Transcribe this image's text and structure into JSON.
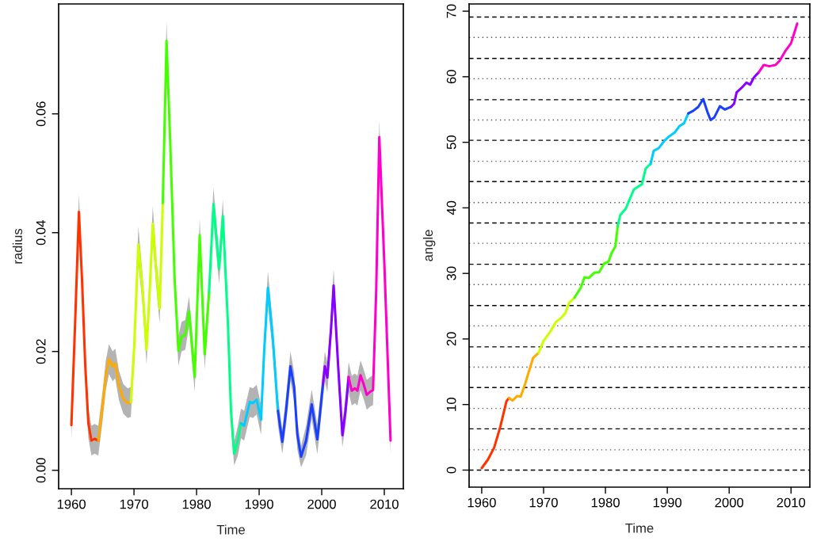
{
  "chart_data": [
    {
      "type": "line",
      "xlabel": "Time",
      "ylabel": "radius",
      "xlim": [
        1957.96,
        2013.04
      ],
      "ylim": [
        -0.0031,
        0.0785
      ],
      "xticks": [
        1960,
        1970,
        1980,
        1990,
        2000,
        2010
      ],
      "yticks": [
        {
          "value": 0,
          "label": "0.00"
        },
        {
          "value": 0.02,
          "label": "0.02"
        },
        {
          "value": 0.04,
          "label": "0.04"
        },
        {
          "value": 0.06,
          "label": "0.06"
        }
      ],
      "grid": false,
      "legend": false,
      "line_style": "solid",
      "series": [
        {
          "color": "#ff3300",
          "x": [
            1960.0,
            1960.6,
            1961.2,
            1961.7,
            1962.2,
            1962.7,
            1963.2,
            1963.7,
            1964.3
          ],
          "values": [
            0.0076,
            0.025,
            0.0435,
            0.032,
            0.018,
            0.008,
            0.005,
            0.0053,
            0.005
          ],
          "lower": [
            0.0051,
            0.0225,
            0.0405,
            0.0295,
            0.0155,
            0.0055,
            0.0025,
            0.0028,
            0.0025
          ],
          "upper": [
            0.0101,
            0.0275,
            0.0465,
            0.0345,
            0.0205,
            0.0105,
            0.0075,
            0.0078,
            0.0075
          ]
        },
        {
          "color": "#ffaa00",
          "x": [
            1964.3,
            1965.0,
            1965.5,
            1966.0,
            1966.6,
            1967.0,
            1967.6,
            1968.3,
            1969.0,
            1969.5
          ],
          "values": [
            0.005,
            0.011,
            0.016,
            0.0187,
            0.0175,
            0.018,
            0.0143,
            0.012,
            0.0113,
            0.0115
          ],
          "lower": [
            0.0025,
            0.0085,
            0.0135,
            0.0162,
            0.015,
            0.0155,
            0.0118,
            0.0095,
            0.0088,
            0.009
          ],
          "upper": [
            0.0075,
            0.0135,
            0.0185,
            0.0212,
            0.02,
            0.0205,
            0.0168,
            0.0145,
            0.0138,
            0.014
          ]
        },
        {
          "color": "#ccff00",
          "x": [
            1969.5,
            1970.0,
            1970.7,
            1971.4,
            1972.0,
            1972.5,
            1973.0,
            1973.6,
            1974.1,
            1974.6
          ],
          "values": [
            0.0115,
            0.02,
            0.038,
            0.03,
            0.0203,
            0.03,
            0.0415,
            0.033,
            0.0272,
            0.045
          ],
          "lower": [
            0.009,
            0.0175,
            0.035,
            0.0275,
            0.0178,
            0.0275,
            0.0385,
            0.0305,
            0.0247,
            0.0425
          ],
          "upper": [
            0.014,
            0.0225,
            0.041,
            0.0325,
            0.0228,
            0.0325,
            0.0445,
            0.0355,
            0.0297,
            0.0475
          ]
        },
        {
          "color": "#44ff00",
          "x": [
            1974.6,
            1975.2,
            1975.8,
            1976.5,
            1977.1,
            1977.6,
            1978.2,
            1978.8,
            1979.7,
            1980.5,
            1981.3,
            1982.0
          ],
          "values": [
            0.045,
            0.0723,
            0.055,
            0.032,
            0.0201,
            0.0225,
            0.0228,
            0.0268,
            0.0157,
            0.0396,
            0.0195,
            0.03
          ],
          "lower": [
            0.0425,
            0.0691,
            0.0525,
            0.0295,
            0.0176,
            0.02,
            0.0203,
            0.0243,
            0.0132,
            0.0368,
            0.017,
            0.0275
          ],
          "upper": [
            0.0475,
            0.0755,
            0.0575,
            0.0345,
            0.0226,
            0.025,
            0.0253,
            0.0293,
            0.0182,
            0.0424,
            0.022,
            0.0325
          ]
        },
        {
          "color": "#00ff88",
          "x": [
            1982.0,
            1982.7,
            1983.6,
            1984.2,
            1985.0,
            1985.5,
            1986.0,
            1986.6,
            1987.1
          ],
          "values": [
            0.03,
            0.0448,
            0.0339,
            0.0428,
            0.025,
            0.01,
            0.0028,
            0.005,
            0.0079
          ],
          "lower": [
            0.0275,
            0.042,
            0.0314,
            0.04,
            0.0225,
            0.0075,
            0.0008,
            0.0025,
            0.0054
          ],
          "upper": [
            0.0325,
            0.0476,
            0.0364,
            0.0456,
            0.0275,
            0.0125,
            0.0048,
            0.0075,
            0.0104
          ]
        },
        {
          "color": "#00ccff",
          "x": [
            1987.1,
            1987.6,
            1988.5,
            1989.0,
            1989.6,
            1990.3,
            1990.8,
            1991.4,
            1992.2,
            1993.0
          ],
          "values": [
            0.0079,
            0.0075,
            0.0115,
            0.0113,
            0.0119,
            0.0085,
            0.02,
            0.0307,
            0.022,
            0.01
          ],
          "lower": [
            0.0054,
            0.005,
            0.009,
            0.0088,
            0.0094,
            0.006,
            0.0175,
            0.0279,
            0.0195,
            0.0075
          ],
          "upper": [
            0.0104,
            0.01,
            0.014,
            0.0138,
            0.0144,
            0.011,
            0.0225,
            0.0335,
            0.0245,
            0.0125
          ]
        },
        {
          "color": "#1a40ff",
          "x": [
            1993.0,
            1993.7,
            1994.3,
            1995.0,
            1995.6,
            1996.1,
            1996.7,
            1997.5,
            1998.4,
            1999.3,
            2000.2
          ],
          "values": [
            0.01,
            0.0048,
            0.01,
            0.0175,
            0.014,
            0.006,
            0.0023,
            0.005,
            0.0111,
            0.0052,
            0.0145
          ],
          "lower": [
            0.0075,
            0.0028,
            0.0075,
            0.015,
            0.0115,
            0.0035,
            0.0005,
            0.0025,
            0.0086,
            0.0027,
            0.012
          ],
          "upper": [
            0.0125,
            0.0068,
            0.0125,
            0.02,
            0.0165,
            0.0085,
            0.0041,
            0.0075,
            0.0136,
            0.0077,
            0.017
          ]
        },
        {
          "color": "#8800ff",
          "x": [
            2000.2,
            2000.5,
            2000.9,
            2001.5,
            2001.9,
            2002.6,
            2003.3,
            2003.8,
            2004.3
          ],
          "values": [
            0.0145,
            0.0175,
            0.0156,
            0.024,
            0.0311,
            0.018,
            0.0059,
            0.01,
            0.0157
          ],
          "lower": [
            0.012,
            0.015,
            0.0131,
            0.0215,
            0.0283,
            0.0155,
            0.0039,
            0.0075,
            0.0132
          ],
          "upper": [
            0.017,
            0.02,
            0.0181,
            0.0265,
            0.0339,
            0.0205,
            0.0079,
            0.0125,
            0.0182
          ]
        },
        {
          "color": "#ff00cc",
          "x": [
            2004.3,
            2004.8,
            2005.3,
            2005.7,
            2006.2,
            2006.7,
            2007.2,
            2007.7,
            2008.2,
            2008.7,
            2009.2,
            2010.0,
            2011.0
          ],
          "values": [
            0.0157,
            0.0134,
            0.0138,
            0.0134,
            0.016,
            0.0145,
            0.0127,
            0.0132,
            0.0135,
            0.03,
            0.0561,
            0.035,
            0.005
          ],
          "lower": [
            0.0132,
            0.0109,
            0.0113,
            0.0109,
            0.0135,
            0.012,
            0.0102,
            0.0107,
            0.011,
            0.0275,
            0.0533,
            0.0325,
            0.0028
          ],
          "upper": [
            0.0182,
            0.0159,
            0.0163,
            0.0159,
            0.0185,
            0.017,
            0.0152,
            0.0157,
            0.016,
            0.0325,
            0.0589,
            0.0375,
            0.0072
          ]
        }
      ]
    },
    {
      "type": "line",
      "xlabel": "Time",
      "ylabel": "angle",
      "xlim": [
        1957.96,
        2013.04
      ],
      "ylim": [
        -2.6,
        71.1
      ],
      "xticks": [
        1960,
        1970,
        1980,
        1990,
        2000,
        2010
      ],
      "yticks": [
        0,
        10,
        20,
        30,
        40,
        50,
        60,
        70
      ],
      "grid": false,
      "legend": false,
      "line_style": "solid",
      "series": [
        {
          "color": "#ff3300",
          "x": [
            1960.0,
            1961.0,
            1962.0,
            1963.0,
            1964.0,
            1964.4
          ],
          "values": [
            0.3,
            1.6,
            3.4,
            6.6,
            10.5,
            11.0
          ]
        },
        {
          "color": "#ffaa00",
          "x": [
            1964.4,
            1965.0,
            1965.7,
            1966.3,
            1967.0,
            1968.3,
            1969.2
          ],
          "values": [
            11.0,
            10.6,
            11.3,
            11.2,
            13.1,
            17.1,
            17.9
          ]
        },
        {
          "color": "#ccff00",
          "x": [
            1969.2,
            1970.0,
            1971.0,
            1972.0,
            1972.7,
            1973.5,
            1974.1,
            1975.0
          ],
          "values": [
            17.9,
            19.7,
            21.0,
            22.6,
            23.1,
            23.9,
            25.5,
            26.3
          ]
        },
        {
          "color": "#44ff00",
          "x": [
            1975.0,
            1976.0,
            1976.6,
            1977.3,
            1978.2,
            1979.0,
            1979.8,
            1980.5,
            1981.0,
            1981.6,
            1982.0
          ],
          "values": [
            26.3,
            27.8,
            29.4,
            29.3,
            30.1,
            30.2,
            31.5,
            31.8,
            33.1,
            34.1,
            37.3
          ]
        },
        {
          "color": "#00ff88",
          "x": [
            1982.0,
            1982.4,
            1983.3,
            1984.0,
            1984.6,
            1985.4,
            1985.9,
            1986.5,
            1987.3
          ],
          "values": [
            37.3,
            38.9,
            39.9,
            41.5,
            42.8,
            43.3,
            43.6,
            46.0,
            46.7
          ]
        },
        {
          "color": "#00ccff",
          "x": [
            1987.3,
            1987.8,
            1988.6,
            1989.5,
            1990.3,
            1991.2,
            1992.0,
            1992.7,
            1993.4
          ],
          "values": [
            46.7,
            48.7,
            49.1,
            50.2,
            50.9,
            51.5,
            52.5,
            52.9,
            54.4
          ]
        },
        {
          "color": "#1a40ff",
          "x": [
            1993.4,
            1994.2,
            1995.0,
            1995.8,
            1996.5,
            1997.0,
            1997.6,
            1998.5,
            1999.3,
            2000.3
          ],
          "values": [
            54.4,
            54.8,
            55.4,
            56.6,
            54.6,
            53.4,
            53.8,
            55.5,
            55.0,
            55.4
          ]
        },
        {
          "color": "#8800ff",
          "x": [
            2000.3,
            2000.8,
            2001.2,
            2002.0,
            2002.8,
            2003.4,
            2004.0,
            2004.8
          ],
          "values": [
            55.4,
            55.9,
            57.6,
            58.3,
            59.1,
            58.8,
            59.9,
            60.7
          ]
        },
        {
          "color": "#ff00cc",
          "x": [
            2004.8,
            2005.6,
            2006.5,
            2007.5,
            2008.2,
            2009.0,
            2010.0,
            2011.0
          ],
          "values": [
            60.7,
            61.8,
            61.6,
            61.8,
            62.5,
            63.8,
            65.1,
            68.1
          ]
        }
      ],
      "ref_lines": [
        {
          "axis": "y",
          "value": 0,
          "line_style": "dashed",
          "color": "#000000"
        },
        {
          "axis": "y",
          "value": 3.1,
          "line_style": "dotted",
          "color": "#555555"
        },
        {
          "axis": "y",
          "value": 6.3,
          "line_style": "dashed",
          "color": "#000000"
        },
        {
          "axis": "y",
          "value": 9.4,
          "line_style": "dotted",
          "color": "#555555"
        },
        {
          "axis": "y",
          "value": 12.6,
          "line_style": "dashed",
          "color": "#000000"
        },
        {
          "axis": "y",
          "value": 15.7,
          "line_style": "dotted",
          "color": "#555555"
        },
        {
          "axis": "y",
          "value": 18.8,
          "line_style": "dashed",
          "color": "#000000"
        },
        {
          "axis": "y",
          "value": 22.0,
          "line_style": "dotted",
          "color": "#555555"
        },
        {
          "axis": "y",
          "value": 25.1,
          "line_style": "dashed",
          "color": "#000000"
        },
        {
          "axis": "y",
          "value": 28.3,
          "line_style": "dotted",
          "color": "#555555"
        },
        {
          "axis": "y",
          "value": 31.4,
          "line_style": "dashed",
          "color": "#000000"
        },
        {
          "axis": "y",
          "value": 34.6,
          "line_style": "dotted",
          "color": "#555555"
        },
        {
          "axis": "y",
          "value": 37.7,
          "line_style": "dashed",
          "color": "#000000"
        },
        {
          "axis": "y",
          "value": 40.8,
          "line_style": "dotted",
          "color": "#555555"
        },
        {
          "axis": "y",
          "value": 44.0,
          "line_style": "dashed",
          "color": "#000000"
        },
        {
          "axis": "y",
          "value": 47.1,
          "line_style": "dotted",
          "color": "#555555"
        },
        {
          "axis": "y",
          "value": 50.3,
          "line_style": "dashed",
          "color": "#000000"
        },
        {
          "axis": "y",
          "value": 53.4,
          "line_style": "dotted",
          "color": "#555555"
        },
        {
          "axis": "y",
          "value": 56.5,
          "line_style": "dashed",
          "color": "#000000"
        },
        {
          "axis": "y",
          "value": 59.7,
          "line_style": "dotted",
          "color": "#555555"
        },
        {
          "axis": "y",
          "value": 62.8,
          "line_style": "dashed",
          "color": "#000000"
        },
        {
          "axis": "y",
          "value": 66.0,
          "line_style": "dotted",
          "color": "#555555"
        },
        {
          "axis": "y",
          "value": 69.1,
          "line_style": "dashed",
          "color": "#000000"
        }
      ]
    }
  ]
}
